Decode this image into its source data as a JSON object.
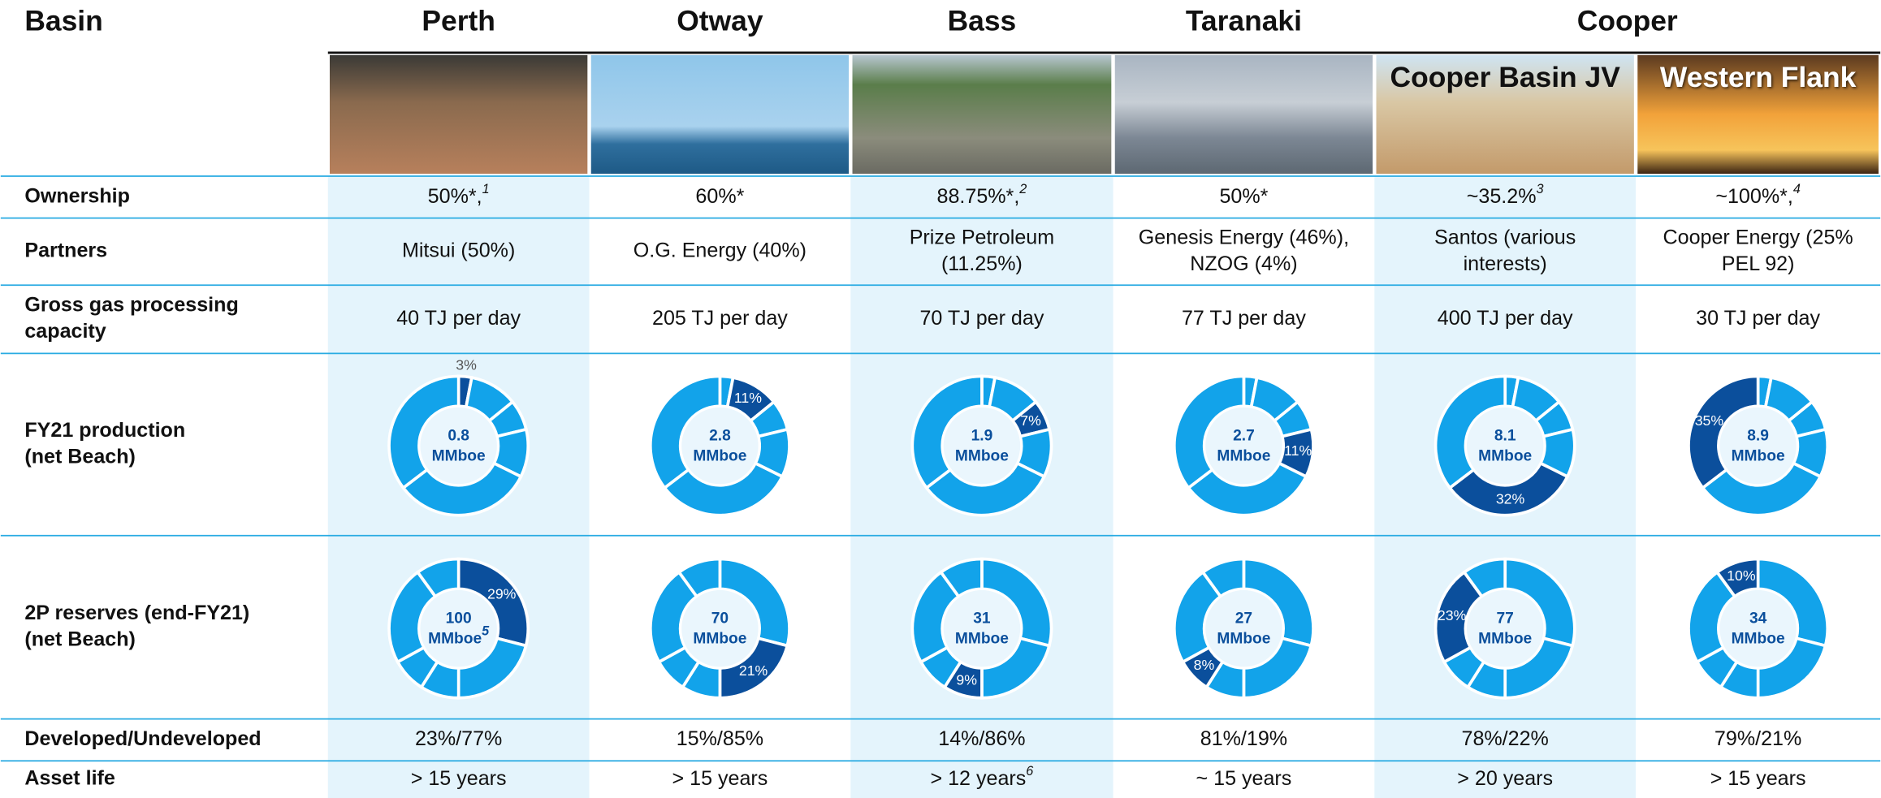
{
  "header": {
    "label": "Basin",
    "basins": [
      "Perth",
      "Otway",
      "Bass",
      "Taranaki",
      "Cooper"
    ]
  },
  "asset_captions": [
    "Cooper Basin JV",
    "Western Flank"
  ],
  "row_labels": {
    "ownership": [
      "Ownership"
    ],
    "partners": [
      "Partners"
    ],
    "capacity": [
      "Gross gas processing",
      "capacity"
    ],
    "production": [
      "FY21 production",
      "(net Beach)"
    ],
    "reserves": [
      "2P reserves (end-FY21)",
      "(net Beach)"
    ],
    "developed": [
      "Developed/Undeveloped"
    ],
    "asset_life": [
      "Asset life"
    ]
  },
  "unit": "MMboe",
  "columns": [
    {
      "ownership": {
        "text": "50%*,",
        "note": "1"
      },
      "partners": [
        "Mitsui (50%)"
      ],
      "capacity": "40 TJ per day",
      "production": {
        "total": 0.8,
        "share": 3,
        "share_label": "3%"
      },
      "reserves": {
        "total": 100,
        "note": "5",
        "share": 29,
        "share_label": "29%"
      },
      "developed": "23%/77%",
      "asset_life": {
        "text": "> 15 years"
      }
    },
    {
      "ownership": {
        "text": "60%*"
      },
      "partners": [
        "O.G. Energy (40%)"
      ],
      "capacity": "205 TJ per day",
      "production": {
        "total": 2.8,
        "share": 11,
        "share_label": "11%"
      },
      "reserves": {
        "total": 70,
        "share": 21,
        "share_label": "21%"
      },
      "developed": "15%/85%",
      "asset_life": {
        "text": "> 15 years"
      }
    },
    {
      "ownership": {
        "text": "88.75%*,",
        "note": "2"
      },
      "partners": [
        "Prize Petroleum",
        "(11.25%)"
      ],
      "capacity": "70 TJ per day",
      "production": {
        "total": 1.9,
        "share": 7,
        "share_label": "7%"
      },
      "reserves": {
        "total": 31,
        "share": 9,
        "share_label": "9%"
      },
      "developed": "14%/86%",
      "asset_life": {
        "text": "> 12 years",
        "note": "6"
      }
    },
    {
      "ownership": {
        "text": "50%*"
      },
      "partners": [
        "Genesis Energy (46%),",
        "NZOG (4%)"
      ],
      "capacity": "77 TJ per day",
      "production": {
        "total": 2.7,
        "share": 11,
        "share_label": "11%"
      },
      "reserves": {
        "total": 27,
        "share": 8,
        "share_label": "8%"
      },
      "developed": "81%/19%",
      "asset_life": {
        "text": "~ 15 years"
      }
    },
    {
      "ownership": {
        "text": "~35.2%",
        "note": "3"
      },
      "partners": [
        "Santos (various",
        "interests)"
      ],
      "capacity": "400 TJ per day",
      "production": {
        "total": 8.1,
        "share": 32,
        "share_label": "32%"
      },
      "reserves": {
        "total": 77,
        "share": 23,
        "share_label": "23%"
      },
      "developed": "78%/22%",
      "asset_life": {
        "text": "> 20 years"
      }
    },
    {
      "ownership": {
        "text": "~100%*,",
        "note": "4"
      },
      "partners": [
        "Cooper Energy (25%",
        "PEL 92)"
      ],
      "capacity": "30 TJ per day",
      "production": {
        "total": 8.9,
        "share": 35,
        "share_label": "35%"
      },
      "reserves": {
        "total": 34,
        "share": 10,
        "share_label": "10%"
      },
      "developed": "79%/21%",
      "asset_life": {
        "text": "> 15 years"
      }
    }
  ]
}
